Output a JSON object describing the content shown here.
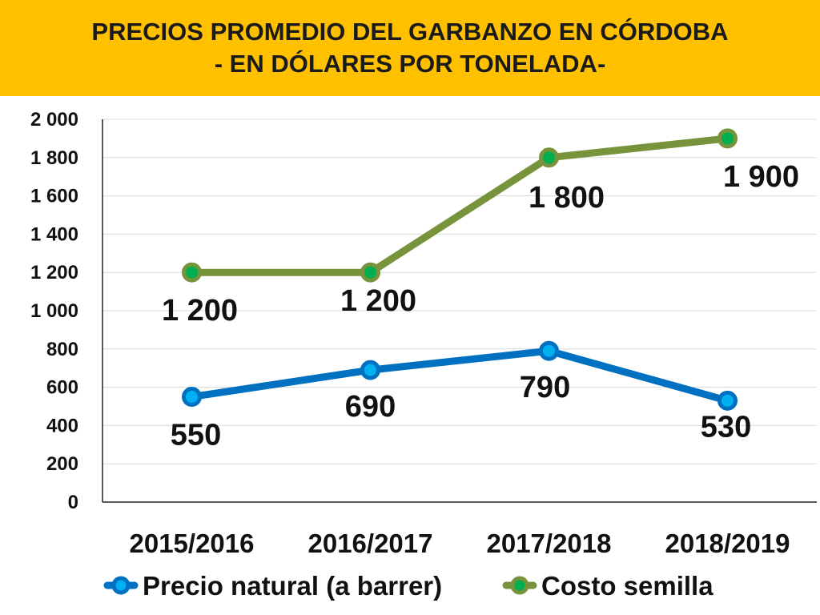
{
  "title_lines": [
    "PRECIOS PROMEDIO DEL GARBANZO EN CÓRDOBA",
    "- EN DÓLARES POR TONELADA-"
  ],
  "colors": {
    "banner": "#FFC000",
    "series_1": "#0070C0",
    "series_1_marker": "#00B0F0",
    "series_2": "#77933C",
    "series_2_marker": "#00B050"
  },
  "chart_data": {
    "type": "line",
    "title": "PRECIOS PROMEDIO DEL GARBANZO EN CÓRDOBA - EN DÓLARES POR TONELADA-",
    "xlabel": "",
    "ylabel": "",
    "categories": [
      "2015/2016",
      "2016/2017",
      "2017/2018",
      "2018/2019"
    ],
    "ylim": [
      0,
      2000
    ],
    "yticks": [
      0,
      200,
      400,
      600,
      800,
      1000,
      1200,
      1400,
      1600,
      1800,
      2000
    ],
    "ytick_labels": [
      "0",
      "200",
      "400",
      "600",
      "800",
      "1 000",
      "1 200",
      "1 400",
      "1 600",
      "1 800",
      "2 000"
    ],
    "grid": true,
    "legend_position": "bottom",
    "series": [
      {
        "name": "Precio natural (a barrer)",
        "values": [
          550,
          690,
          790,
          530
        ],
        "labels": [
          "550",
          "690",
          "790",
          "530"
        ]
      },
      {
        "name": "Costo semilla",
        "values": [
          1200,
          1200,
          1800,
          1900
        ],
        "labels": [
          "1 200",
          "1 200",
          "1 800",
          "1 900"
        ]
      }
    ]
  }
}
